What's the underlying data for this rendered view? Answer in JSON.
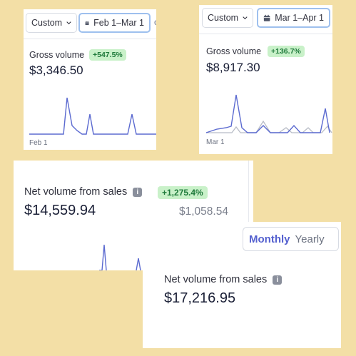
{
  "card_feb": {
    "range_select": "Custom",
    "date_range": "Feb 1–Mar 1",
    "metric_label": "Gross volume",
    "change_badge": "+547.5%",
    "value": "$3,346.50",
    "axis_start": "Feb 1"
  },
  "card_mar": {
    "range_select": "Custom",
    "date_range": "Mar 1–Apr 1",
    "metric_label": "Gross volume",
    "change_badge": "+136.7%",
    "value": "$8,917.30",
    "axis_start": "Mar 1"
  },
  "card_net": {
    "metric_label": "Net volume from sales",
    "change_badge": "+1,275.4%",
    "value": "$14,559.94",
    "comparison_value": "$1,058.54"
  },
  "interval_toggle": {
    "options": [
      "Monthly",
      "Yearly"
    ],
    "selected": "Monthly"
  },
  "card_net2": {
    "metric_label": "Net volume from sales",
    "value": "$17,216.95"
  },
  "icons": {
    "calendar": "calendar-icon",
    "chevron": "chevron-down-icon",
    "info": "info-icon"
  },
  "colors": {
    "background": "#f3dfa6",
    "line_current": "#5b6ad0",
    "line_previous": "#b8bcc6",
    "badge_bg": "#c9f1c9",
    "badge_text": "#1f7a3b",
    "toggle_selected": "#5460cf"
  }
}
